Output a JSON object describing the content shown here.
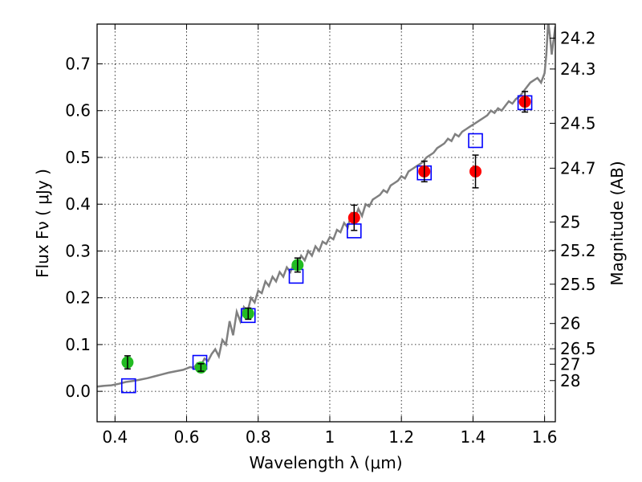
{
  "chart_data": {
    "type": "scatter",
    "xlabel": "Wavelength  λ (μm)",
    "ylabel": "Flux  Fν  ( μJy )",
    "ylabel_right": "Magnitude (AB)",
    "xlim": [
      0.35,
      1.63
    ],
    "ylim": [
      -0.065,
      0.785
    ],
    "x_ticks": [
      0.4,
      0.6,
      0.8,
      1.0,
      1.2,
      1.4,
      1.6
    ],
    "x_tick_labels": [
      "0.4",
      "0.6",
      "0.8",
      "1",
      "1.2",
      "1.4",
      "1.6"
    ],
    "y_ticks": [
      0.0,
      0.1,
      0.2,
      0.3,
      0.4,
      0.5,
      0.6,
      0.7
    ],
    "y_tick_labels": [
      "0.0",
      "0.1",
      "0.2",
      "0.3",
      "0.4",
      "0.5",
      "0.6",
      "0.7"
    ],
    "right_ticks": [
      {
        "label": "24.2",
        "flux": 0.755
      },
      {
        "label": "24.3",
        "flux": 0.689
      },
      {
        "label": "24.5",
        "flux": 0.573
      },
      {
        "label": "24.7",
        "flux": 0.477
      },
      {
        "label": "25",
        "flux": 0.362
      },
      {
        "label": "25.2",
        "flux": 0.301
      },
      {
        "label": "25.5",
        "flux": 0.229
      },
      {
        "label": "26",
        "flux": 0.145
      },
      {
        "label": "26.5",
        "flux": 0.091
      },
      {
        "label": "27",
        "flux": 0.058
      },
      {
        "label": "28",
        "flux": 0.023
      }
    ],
    "grid": true,
    "colors": {
      "spectrum": "#808080",
      "model": "#0000ff",
      "green": "#22bb22",
      "red": "#ff0000",
      "errorbar": "#000000"
    },
    "series": [
      {
        "marker": "spectrum-line",
        "x": [
          0.35,
          0.37,
          0.39,
          0.41,
          0.43,
          0.45,
          0.47,
          0.49,
          0.51,
          0.53,
          0.55,
          0.57,
          0.59,
          0.61,
          0.62,
          0.63,
          0.64,
          0.65,
          0.66,
          0.67,
          0.68,
          0.69,
          0.7,
          0.71,
          0.72,
          0.73,
          0.74,
          0.75,
          0.76,
          0.77,
          0.78,
          0.79,
          0.8,
          0.81,
          0.82,
          0.83,
          0.84,
          0.85,
          0.86,
          0.87,
          0.88,
          0.89,
          0.9,
          0.91,
          0.92,
          0.93,
          0.94,
          0.95,
          0.96,
          0.97,
          0.98,
          0.99,
          1.0,
          1.01,
          1.02,
          1.03,
          1.04,
          1.05,
          1.06,
          1.07,
          1.08,
          1.09,
          1.1,
          1.11,
          1.12,
          1.13,
          1.14,
          1.15,
          1.16,
          1.17,
          1.18,
          1.19,
          1.2,
          1.21,
          1.22,
          1.23,
          1.24,
          1.25,
          1.26,
          1.27,
          1.28,
          1.29,
          1.3,
          1.31,
          1.32,
          1.33,
          1.34,
          1.35,
          1.36,
          1.37,
          1.38,
          1.39,
          1.4,
          1.41,
          1.42,
          1.43,
          1.44,
          1.45,
          1.46,
          1.47,
          1.48,
          1.49,
          1.5,
          1.51,
          1.52,
          1.53,
          1.54,
          1.55,
          1.56,
          1.57,
          1.58,
          1.59,
          1.6,
          1.605,
          1.61,
          1.615,
          1.62,
          1.63
        ],
        "y": [
          0.01,
          0.012,
          0.013,
          0.016,
          0.02,
          0.022,
          0.025,
          0.028,
          0.032,
          0.036,
          0.04,
          0.043,
          0.046,
          0.052,
          0.05,
          0.06,
          0.055,
          0.07,
          0.065,
          0.08,
          0.09,
          0.075,
          0.11,
          0.1,
          0.15,
          0.12,
          0.17,
          0.15,
          0.18,
          0.17,
          0.2,
          0.19,
          0.215,
          0.21,
          0.235,
          0.225,
          0.245,
          0.235,
          0.255,
          0.245,
          0.265,
          0.255,
          0.275,
          0.27,
          0.29,
          0.28,
          0.3,
          0.29,
          0.31,
          0.3,
          0.32,
          0.315,
          0.33,
          0.325,
          0.345,
          0.34,
          0.36,
          0.35,
          0.38,
          0.37,
          0.39,
          0.375,
          0.4,
          0.395,
          0.41,
          0.415,
          0.42,
          0.43,
          0.425,
          0.44,
          0.445,
          0.45,
          0.46,
          0.455,
          0.47,
          0.475,
          0.48,
          0.485,
          0.49,
          0.5,
          0.505,
          0.51,
          0.52,
          0.525,
          0.53,
          0.54,
          0.535,
          0.55,
          0.545,
          0.555,
          0.56,
          0.565,
          0.57,
          0.575,
          0.58,
          0.585,
          0.59,
          0.6,
          0.595,
          0.605,
          0.6,
          0.61,
          0.62,
          0.615,
          0.625,
          0.63,
          0.64,
          0.65,
          0.66,
          0.665,
          0.67,
          0.66,
          0.68,
          0.72,
          0.79,
          0.76,
          0.72,
          0.78
        ]
      },
      {
        "marker": "open-blue-square",
        "x": [
          0.438,
          0.637,
          0.772,
          0.906,
          1.068,
          1.264,
          1.407,
          1.545
        ],
        "y": [
          0.012,
          0.062,
          0.162,
          0.246,
          0.343,
          0.467,
          0.536,
          0.617
        ]
      },
      {
        "marker": "green-circle",
        "x": [
          0.435,
          0.64,
          0.772,
          0.91
        ],
        "y": [
          0.062,
          0.051,
          0.166,
          0.27
        ],
        "yerr": [
          0.014,
          0.008,
          0.012,
          0.015
        ]
      },
      {
        "marker": "red-circle",
        "x": [
          1.068,
          1.264,
          1.407,
          1.545
        ],
        "y": [
          0.371,
          0.47,
          0.47,
          0.619
        ],
        "yerr": [
          0.027,
          0.022,
          0.035,
          0.022
        ]
      }
    ]
  }
}
